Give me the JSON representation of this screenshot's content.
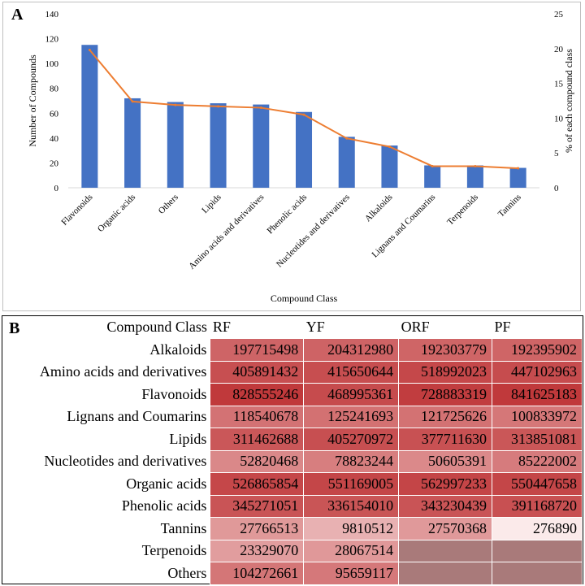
{
  "panel_a": {
    "label": "A",
    "chart_data": {
      "type": "bar",
      "categories": [
        "Flavonoids",
        "Organic acids",
        "Others",
        "Lipids",
        "Amino acids and derivatives",
        "Phenolic acids",
        "Nucleotides and derivatives",
        "Alkaloids",
        "Lignans and Coumarins",
        "Terpenoids",
        "Tannins"
      ],
      "series": [
        {
          "name": "Number of Compounds",
          "kind": "bar",
          "axis": "left",
          "values": [
            115,
            72,
            69,
            68,
            67,
            61,
            41,
            34,
            18,
            18,
            16
          ]
        },
        {
          "name": "% of each compound class",
          "kind": "line",
          "axis": "right",
          "values": [
            19.8,
            12.4,
            11.9,
            11.7,
            11.5,
            10.5,
            7.1,
            5.9,
            3.1,
            3.1,
            2.8
          ]
        }
      ],
      "title": "",
      "xlabel": "Compound Class",
      "ylabel": "Number of Compounds",
      "y2label": "% of each compound class",
      "ylim": [
        0,
        140
      ],
      "y2lim": [
        0,
        25
      ],
      "yticks": [
        "0",
        "20",
        "40",
        "60",
        "80",
        "100",
        "120",
        "140"
      ],
      "y2ticks": [
        "0",
        "5",
        "10",
        "15",
        "20",
        "25"
      ],
      "bar_color": "#4472c4",
      "line_color": "#ed7d31"
    }
  },
  "panel_b": {
    "label": "B",
    "chart_data": {
      "type": "heatmap",
      "corner_label": "Compound Class",
      "columns": [
        "RF",
        "YF",
        "ORF",
        "PF"
      ],
      "rows": [
        {
          "label": "Alkaloids",
          "values": [
            "197715498",
            "204312980",
            "192303779",
            "192395902"
          ]
        },
        {
          "label": "Amino acids and derivatives",
          "values": [
            "405891432",
            "415650644",
            "518992023",
            "447102963"
          ]
        },
        {
          "label": "Flavonoids",
          "values": [
            "828555246",
            "468995361",
            "728883319",
            "841625183"
          ]
        },
        {
          "label": "Lignans and Coumarins",
          "values": [
            "118540678",
            "125241693",
            "121725626",
            "100833972"
          ]
        },
        {
          "label": "Lipids",
          "values": [
            "311462688",
            "405270972",
            "377711630",
            "313851081"
          ]
        },
        {
          "label": "Nucleotides and derivatives",
          "values": [
            "52820468",
            "78823244",
            "50605391",
            "85222002"
          ]
        },
        {
          "label": "Organic acids",
          "values": [
            "526865854",
            "551169005",
            "562997233",
            "550447658"
          ]
        },
        {
          "label": "Phenolic acids",
          "values": [
            "345271051",
            "336154010",
            "343230439",
            "391168720"
          ]
        },
        {
          "label": "Tannins",
          "values": [
            "27766513",
            "9810512",
            "27570368",
            "276890"
          ]
        },
        {
          "label": "Terpenoids",
          "values": [
            "23329070",
            "28067514",
            "",
            ""
          ]
        },
        {
          "label": "Others",
          "values": [
            "104272661",
            "95659117",
            "",
            ""
          ]
        }
      ],
      "color_low": "#fbeaea",
      "color_high": "#c0393b"
    }
  }
}
